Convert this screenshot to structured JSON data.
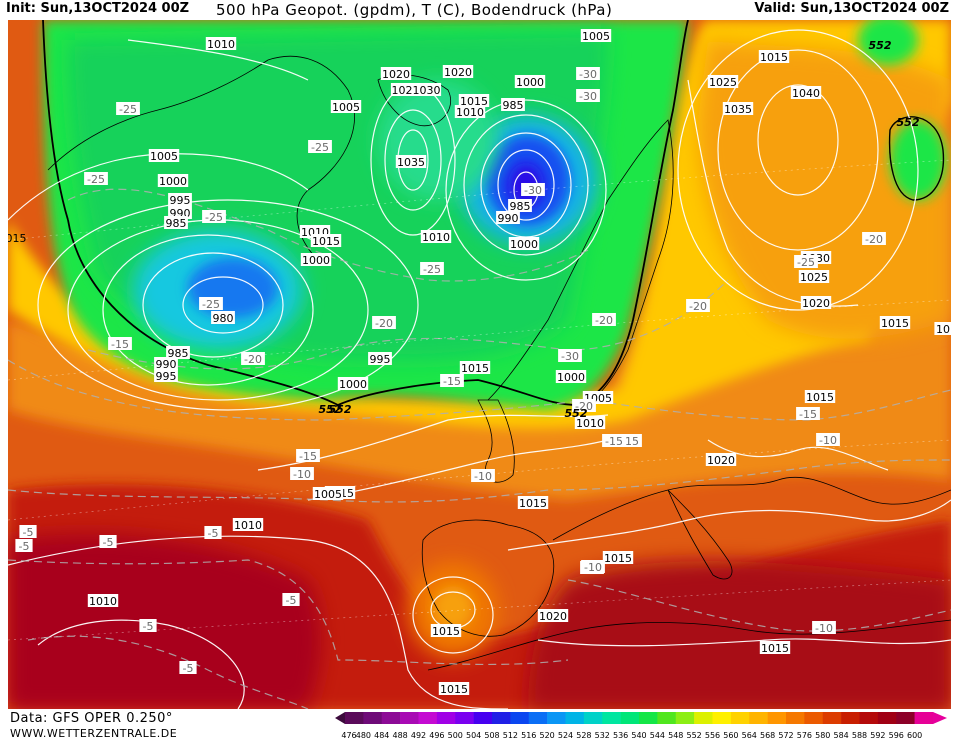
{
  "header": {
    "init": "Init: Sun,13OCT2024 00Z",
    "title": "500 hPa Geopot. (gpdm), T (C), Bodendruck (hPa)",
    "valid": "Valid: Sun,13OCT2024 00Z"
  },
  "footer": {
    "data_source": "Data: GFS OPER 0.250°",
    "website": "WWW.WETTERZENTRALE.DE"
  },
  "colorbar": {
    "ticks": [
      "476",
      "480",
      "484",
      "488",
      "492",
      "496",
      "500",
      "504",
      "508",
      "512",
      "516",
      "520",
      "524",
      "528",
      "532",
      "536",
      "540",
      "544",
      "548",
      "552",
      "556",
      "560",
      "564",
      "568",
      "572",
      "576",
      "580",
      "584",
      "588",
      "592",
      "596",
      "600"
    ],
    "colors": [
      "#5a0a5a",
      "#6e0a78",
      "#8c0a96",
      "#a80ab4",
      "#c40ad2",
      "#a000e6",
      "#7a00f0",
      "#4600f0",
      "#2020e6",
      "#0a46f0",
      "#0a6ef5",
      "#0a96f5",
      "#00b4e6",
      "#00d2c8",
      "#00e6a0",
      "#00e678",
      "#14e646",
      "#50e61e",
      "#8cee14",
      "#dcf000",
      "#fff000",
      "#ffd200",
      "#ffb400",
      "#ff9600",
      "#f57800",
      "#eb5a00",
      "#dc3c00",
      "#c81e00",
      "#b40a0a",
      "#a00014",
      "#8c0028",
      "#e60096"
    ]
  },
  "map": {
    "pressure_labels": [
      "1010",
      "1020",
      "1020",
      "1005",
      "1000",
      "1025",
      "1040",
      "1035",
      "1005",
      "1021030",
      "1015",
      "1010",
      "985",
      "1035",
      "1005",
      "1000",
      "995",
      "990",
      "985",
      "985",
      "990",
      "1010",
      "1015",
      "1000",
      "1010",
      "1000",
      "1030",
      "1025",
      "1020",
      "1015",
      "980",
      "985",
      "990",
      "995",
      "995",
      "1000",
      "1015",
      "1000",
      "1005",
      "1010",
      "1015",
      "1005",
      "1010",
      "1015",
      "1020",
      "1015",
      "1015",
      "1020",
      "1010",
      "1015",
      "1015",
      "1015",
      "10",
      "1015"
    ],
    "temp_labels": [
      "-25",
      "-30",
      "-25",
      "-30",
      "-25",
      "-25",
      "-25",
      "-30",
      "-20",
      "-25",
      "-20",
      "-15",
      "-20",
      "-25",
      "-20",
      "-30",
      "-15",
      "-20",
      "-20",
      "-15",
      "-10",
      "-15",
      "-10",
      "-10",
      "-15",
      "-10",
      "-5",
      "-5",
      "-5",
      "-5",
      "-5",
      "-5",
      "-5",
      "-10",
      "-10",
      "-15"
    ],
    "height_labels": [
      "552",
      "552",
      "552",
      "552",
      "552"
    ],
    "edge_labels": [
      "015"
    ]
  }
}
